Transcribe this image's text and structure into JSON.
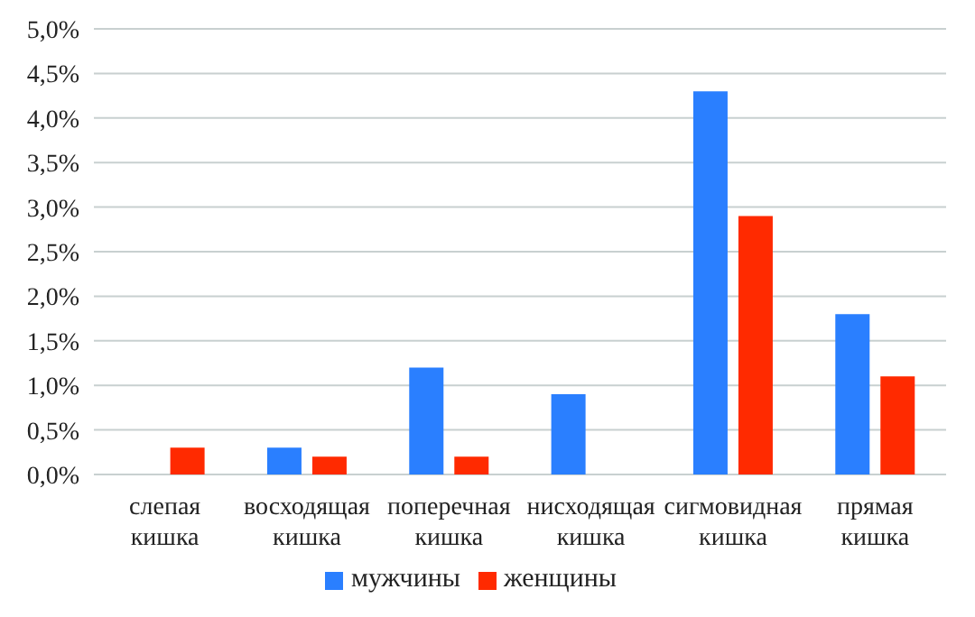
{
  "chart_data": {
    "type": "bar",
    "categories": [
      "слепая кишка",
      "восходящая кишка",
      "поперечная кишка",
      "нисходящая кишка",
      "сигмовидная кишка",
      "прямая кишка"
    ],
    "series": [
      {
        "name": "мужчины",
        "color": "#2a7fff",
        "values": [
          0,
          0.3,
          1.2,
          0.9,
          4.3,
          1.8
        ]
      },
      {
        "name": "женщины",
        "color": "#ff2a00",
        "values": [
          0.3,
          0.2,
          0.2,
          0,
          2.9,
          1.1
        ]
      }
    ],
    "ylim": [
      0,
      5
    ],
    "yticks": [
      {
        "value": 0,
        "label": "0,0%"
      },
      {
        "value": 0.5,
        "label": "0,5%"
      },
      {
        "value": 1,
        "label": "1,0%"
      },
      {
        "value": 1.5,
        "label": "1,5%"
      },
      {
        "value": 2,
        "label": "2,0%"
      },
      {
        "value": 2.5,
        "label": "2,5%"
      },
      {
        "value": 3,
        "label": "3,0%"
      },
      {
        "value": 3.5,
        "label": "3,5%"
      },
      {
        "value": 4,
        "label": "4,0%"
      },
      {
        "value": 4.5,
        "label": "4,5%"
      },
      {
        "value": 5,
        "label": "5,0%"
      }
    ],
    "grid": "y",
    "legend": "bottom"
  }
}
